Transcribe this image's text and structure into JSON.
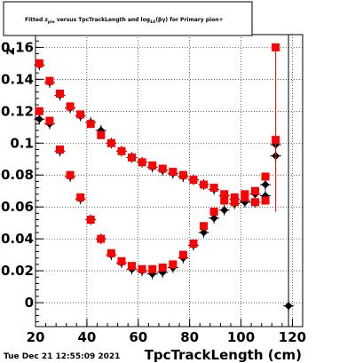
{
  "chart_data": {
    "type": "scatter",
    "title": {
      "pre": "Fitted  z",
      "sub1": "pio",
      "mid": "  versus TpcTrackLength and log",
      "sub2": "10",
      "post": "(βγ) for Primary pion+"
    },
    "xlabel": "TpcTrackLength (cm)",
    "ylabel": "z",
    "xlim": [
      20,
      124
    ],
    "ylim": [
      -0.015,
      0.168
    ],
    "grid": true,
    "date_stamp": "Tue Dec 21 12:55:09 2021",
    "x_ticks": [
      "20",
      "40",
      "60",
      "80",
      "100",
      "120"
    ],
    "y_ticks": [
      "0",
      "0.02",
      "0.04",
      "0.06",
      "0.08",
      "0.1",
      "0.12",
      "0.14",
      "0.16"
    ],
    "series": [
      {
        "color": "#000000",
        "points": [
          [
            21.5,
            0.149
          ],
          [
            25.5,
            0.138
          ],
          [
            29.5,
            0.13
          ],
          [
            33.5,
            0.122
          ],
          [
            37.5,
            0.117
          ],
          [
            41.5,
            0.113
          ],
          [
            45.5,
            0.108
          ],
          [
            49.5,
            0.1
          ],
          [
            53.5,
            0.095
          ],
          [
            57.5,
            0.091
          ],
          [
            61.5,
            0.088
          ],
          [
            65.5,
            0.085
          ],
          [
            69.5,
            0.083
          ],
          [
            73.5,
            0.081
          ],
          [
            77.5,
            0.079
          ],
          [
            81.5,
            0.077
          ],
          [
            85.5,
            0.074
          ],
          [
            89.5,
            0.071
          ],
          [
            93.5,
            0.067
          ],
          [
            97.5,
            0.065
          ],
          [
            101.5,
            0.063
          ],
          [
            105.5,
            0.063
          ],
          [
            109.5,
            0.067
          ],
          [
            113.5,
            0.092
          ],
          [
            21.5,
            0.115
          ],
          [
            25.5,
            0.112
          ],
          [
            29.5,
            0.095
          ],
          [
            33.5,
            0.079
          ],
          [
            37.5,
            0.065
          ],
          [
            41.5,
            0.052
          ],
          [
            45.5,
            0.04
          ],
          [
            49.5,
            0.03
          ],
          [
            53.5,
            0.025
          ],
          [
            57.5,
            0.021
          ],
          [
            61.5,
            0.02
          ],
          [
            65.5,
            0.018
          ],
          [
            69.5,
            0.019
          ],
          [
            73.5,
            0.022
          ],
          [
            77.5,
            0.028
          ],
          [
            81.5,
            0.036
          ],
          [
            85.5,
            0.044
          ],
          [
            89.5,
            0.053
          ],
          [
            93.5,
            0.058
          ],
          [
            97.5,
            0.062
          ],
          [
            101.5,
            0.064
          ],
          [
            105.5,
            0.068
          ],
          [
            109.5,
            0.074
          ],
          [
            113.5,
            0.099
          ],
          [
            118.5,
            -0.002
          ]
        ]
      },
      {
        "color": "#ff0000",
        "points": [
          [
            21.5,
            0.15
          ],
          [
            25.5,
            0.139
          ],
          [
            29.5,
            0.131
          ],
          [
            33.5,
            0.123
          ],
          [
            37.5,
            0.118
          ],
          [
            41.5,
            0.112
          ],
          [
            45.5,
            0.105
          ],
          [
            49.5,
            0.1
          ],
          [
            53.5,
            0.095
          ],
          [
            57.5,
            0.091
          ],
          [
            61.5,
            0.088
          ],
          [
            65.5,
            0.086
          ],
          [
            69.5,
            0.084
          ],
          [
            73.5,
            0.082
          ],
          [
            77.5,
            0.08
          ],
          [
            81.5,
            0.077
          ],
          [
            85.5,
            0.074
          ],
          [
            89.5,
            0.072
          ],
          [
            93.5,
            0.068
          ],
          [
            97.5,
            0.066
          ],
          [
            101.5,
            0.068
          ],
          [
            105.5,
            0.063
          ],
          [
            109.5,
            0.064
          ],
          [
            113.5,
            0.16
          ],
          [
            21.5,
            0.12
          ],
          [
            25.5,
            0.114
          ],
          [
            29.5,
            0.096
          ],
          [
            33.5,
            0.08
          ],
          [
            37.5,
            0.066
          ],
          [
            41.5,
            0.052
          ],
          [
            45.5,
            0.04
          ],
          [
            49.5,
            0.031
          ],
          [
            53.5,
            0.026
          ],
          [
            57.5,
            0.023
          ],
          [
            61.5,
            0.021
          ],
          [
            65.5,
            0.021
          ],
          [
            69.5,
            0.022
          ],
          [
            73.5,
            0.024
          ],
          [
            77.5,
            0.03
          ],
          [
            81.5,
            0.037
          ],
          [
            85.5,
            0.048
          ],
          [
            89.5,
            0.057
          ],
          [
            93.5,
            0.064
          ],
          [
            97.5,
            0.063
          ],
          [
            101.5,
            0.066
          ],
          [
            105.5,
            0.07
          ],
          [
            109.5,
            0.079
          ],
          [
            113.5,
            0.102
          ]
        ]
      }
    ]
  }
}
